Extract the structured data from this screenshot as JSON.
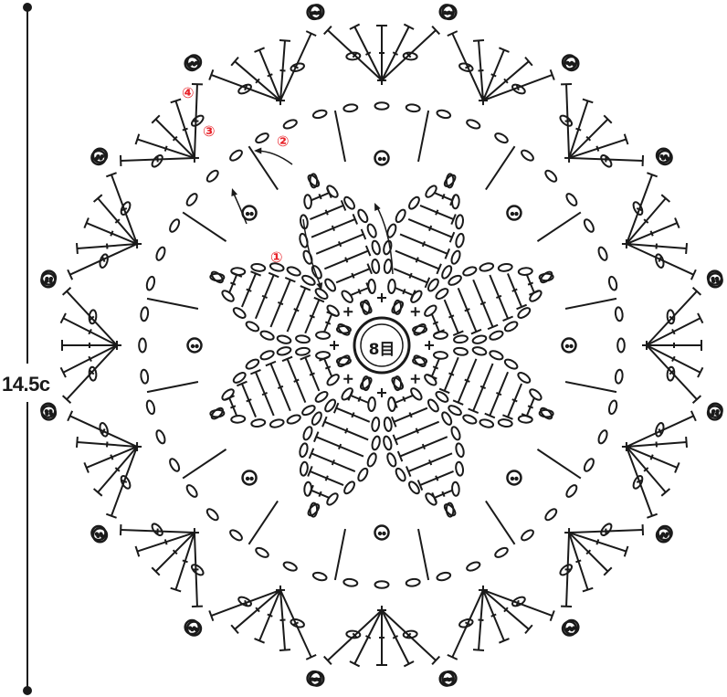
{
  "dimension": {
    "label": "14.5c"
  },
  "center": {
    "label": "8目"
  },
  "rounds": [
    {
      "label": "①"
    },
    {
      "label": "②"
    },
    {
      "label": "③"
    },
    {
      "label": "④"
    }
  ],
  "colors": {
    "ink": "#1a1a1a",
    "round_marker": "#e8232a"
  }
}
